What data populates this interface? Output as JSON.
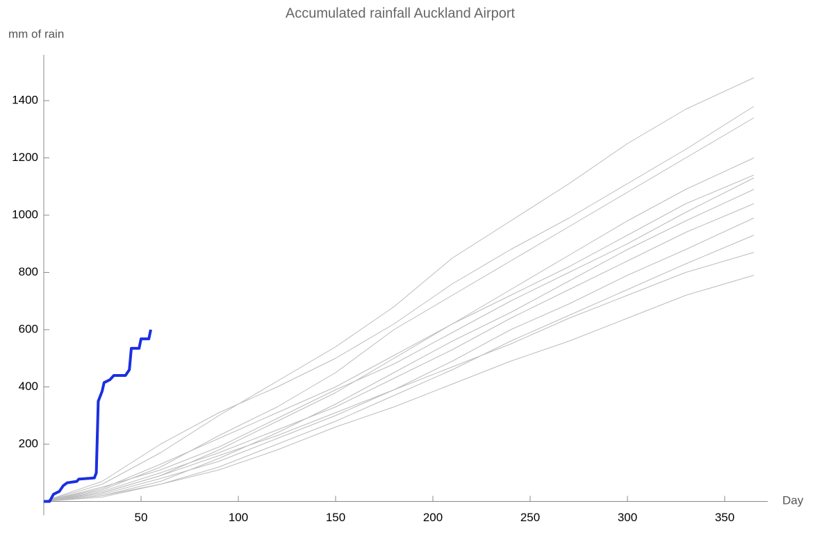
{
  "chart_data": {
    "type": "line",
    "title": "Accumulated rainfall Auckland Airport",
    "y_label": "mm of rain",
    "x_label": "Day",
    "xlim": [
      0,
      375
    ],
    "ylim": [
      0,
      1560
    ],
    "xticks": [
      50,
      100,
      150,
      200,
      250,
      300,
      350
    ],
    "yticks": [
      200,
      400,
      600,
      800,
      1000,
      1200,
      1400
    ],
    "x": [
      0,
      30,
      60,
      90,
      120,
      150,
      180,
      210,
      240,
      270,
      300,
      330,
      365
    ],
    "series": [
      {
        "color": "#bbbbbb",
        "values": [
          0,
          60,
          170,
          300,
          420,
          540,
          680,
          850,
          980,
          1110,
          1250,
          1370,
          1480
        ]
      },
      {
        "color": "#bbbbbb",
        "values": [
          0,
          40,
          120,
          230,
          330,
          450,
          600,
          720,
          840,
          960,
          1080,
          1200,
          1340
        ]
      },
      {
        "color": "#bbbbbb",
        "values": [
          0,
          30,
          90,
          180,
          280,
          380,
          500,
          620,
          740,
          860,
          980,
          1090,
          1200
        ]
      },
      {
        "color": "#bbbbbb",
        "values": [
          0,
          50,
          110,
          190,
          290,
          390,
          480,
          590,
          700,
          800,
          900,
          1010,
          1130
        ]
      },
      {
        "color": "#bbbbbb",
        "values": [
          0,
          20,
          70,
          150,
          240,
          340,
          450,
          560,
          660,
          770,
          880,
          980,
          1090
        ]
      },
      {
        "color": "#bbbbbb",
        "values": [
          0,
          35,
          100,
          170,
          250,
          330,
          430,
          530,
          640,
          740,
          840,
          940,
          1040
        ]
      },
      {
        "color": "#bbbbbb",
        "values": [
          0,
          25,
          80,
          140,
          220,
          300,
          390,
          490,
          600,
          690,
          790,
          880,
          990
        ]
      },
      {
        "color": "#bbbbbb",
        "values": [
          0,
          15,
          60,
          120,
          200,
          280,
          370,
          460,
          560,
          650,
          740,
          830,
          930
        ]
      },
      {
        "color": "#bbbbbb",
        "values": [
          0,
          30,
          90,
          160,
          230,
          310,
          390,
          470,
          550,
          640,
          720,
          800,
          870
        ]
      },
      {
        "color": "#bbbbbb",
        "values": [
          0,
          20,
          60,
          110,
          180,
          260,
          330,
          410,
          490,
          560,
          640,
          720,
          790
        ]
      },
      {
        "color": "#bbbbbb",
        "values": [
          0,
          70,
          200,
          310,
          400,
          500,
          620,
          760,
          880,
          990,
          1110,
          1230,
          1380
        ]
      },
      {
        "color": "#bbbbbb",
        "values": [
          0,
          45,
          130,
          220,
          310,
          400,
          510,
          620,
          720,
          820,
          930,
          1040,
          1140
        ]
      },
      {
        "color": "#1a2fe0",
        "width": 4,
        "x": [
          0,
          3,
          5,
          8,
          10,
          12,
          17,
          18,
          26,
          27,
          28,
          30,
          31,
          34,
          36,
          42,
          44,
          45,
          49,
          50,
          54,
          55
        ],
        "values": [
          0,
          0,
          25,
          35,
          55,
          65,
          70,
          78,
          82,
          100,
          350,
          385,
          415,
          425,
          440,
          440,
          460,
          535,
          535,
          568,
          568,
          600
        ]
      }
    ]
  }
}
